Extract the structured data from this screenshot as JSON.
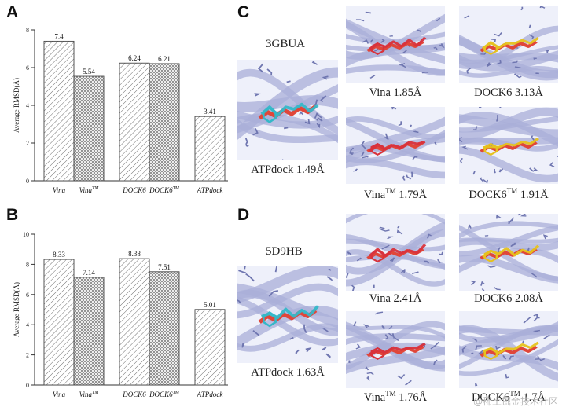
{
  "panels": {
    "a": "A",
    "b": "B",
    "c": "C",
    "d": "D"
  },
  "chart_data": [
    {
      "type": "bar",
      "panel": "A",
      "ylabel": "Average RMSD(Å)",
      "ylim": [
        0,
        8
      ],
      "yticks": [
        "0",
        "2",
        "4",
        "6",
        "8"
      ],
      "categories": [
        {
          "base": "Vina",
          "sup": ""
        },
        {
          "base": "Vina",
          "sup": "TM"
        },
        {
          "base": "DOCK6",
          "sup": ""
        },
        {
          "base": "DOCK6",
          "sup": "TM"
        },
        {
          "base": "ATPdock",
          "sup": ""
        }
      ],
      "values": [
        7.4,
        5.54,
        6.24,
        6.21,
        3.41
      ],
      "value_labels": [
        "7.4",
        "5.54",
        "6.24",
        "6.21",
        "3.41"
      ],
      "patterns": [
        "hatch",
        "cross",
        "hatch",
        "cross",
        "hatch"
      ]
    },
    {
      "type": "bar",
      "panel": "B",
      "ylabel": "Average RMSD(Å)",
      "ylim": [
        0,
        10
      ],
      "yticks": [
        "0",
        "2",
        "4",
        "6",
        "8",
        "10"
      ],
      "categories": [
        {
          "base": "Vina",
          "sup": ""
        },
        {
          "base": "Vina",
          "sup": "TM"
        },
        {
          "base": "DOCK6",
          "sup": ""
        },
        {
          "base": "DOCK6",
          "sup": "TM"
        },
        {
          "base": "ATPdock",
          "sup": ""
        }
      ],
      "values": [
        8.33,
        7.14,
        8.38,
        7.51,
        5.01
      ],
      "value_labels": [
        "8.33",
        "7.14",
        "8.38",
        "7.51",
        "5.01"
      ],
      "patterns": [
        "hatch",
        "cross",
        "hatch",
        "cross",
        "hatch"
      ]
    }
  ],
  "panel_c": {
    "structure": "3GBUA",
    "main_caption": {
      "base": "ATPdock 1.49Å"
    },
    "tiles": [
      {
        "base": "Vina 1.85Å"
      },
      {
        "base": "DOCK6 3.13Å"
      },
      {
        "pre": "Vina",
        "sup": "TM",
        "post": " 1.79Å"
      },
      {
        "pre": "DOCK6",
        "sup": "TM",
        "post": " 1.91Å"
      }
    ]
  },
  "panel_d": {
    "structure": "5D9HB",
    "main_caption": {
      "base": "ATPdock 1.63Å"
    },
    "tiles": [
      {
        "base": "Vina 2.41Å"
      },
      {
        "base": "DOCK6 2.08Å"
      },
      {
        "pre": "Vina",
        "sup": "TM",
        "post": " 1.76Å"
      },
      {
        "pre": "DOCK6",
        "sup": "TM",
        "post": " 1.7Å"
      }
    ]
  },
  "ligand_colors": {
    "ATPdock": "#34b8c8",
    "Vina": "#d8323c",
    "DOCK6": "#e6c21e",
    "native": "#e0463a"
  },
  "protein_color": "#a9afd8",
  "watermark": "@稀土掘金技术社区"
}
